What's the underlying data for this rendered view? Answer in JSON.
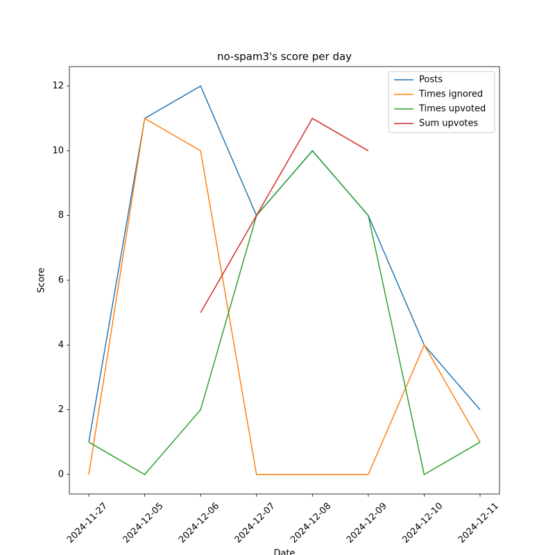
{
  "chart_data": {
    "type": "line",
    "title": "no-spam3's score per day",
    "xlabel": "Date",
    "ylabel": "Score",
    "categories": [
      "2024-11-27",
      "2024-12-05",
      "2024-12-06",
      "2024-12-07",
      "2024-12-08",
      "2024-12-09",
      "2024-12-10",
      "2024-12-11"
    ],
    "series": [
      {
        "name": "Posts",
        "color": "#1f77b4",
        "values": [
          1,
          11,
          12,
          8,
          10,
          8,
          4,
          2
        ]
      },
      {
        "name": "Times ignored",
        "color": "#ff7f0e",
        "values": [
          0,
          11,
          10,
          0,
          0,
          0,
          4,
          1
        ]
      },
      {
        "name": "Times upvoted",
        "color": "#2ca02c",
        "values": [
          1,
          0,
          2,
          8,
          10,
          8,
          0,
          1
        ]
      },
      {
        "name": "Sum upvotes",
        "color": "#d62728",
        "values": [
          null,
          null,
          5,
          8,
          11,
          10,
          null,
          null
        ]
      }
    ],
    "ylim": [
      -0.6,
      12.6
    ],
    "yticks": [
      0,
      2,
      4,
      6,
      8,
      10,
      12
    ],
    "grid": false,
    "legend": "upper right"
  }
}
